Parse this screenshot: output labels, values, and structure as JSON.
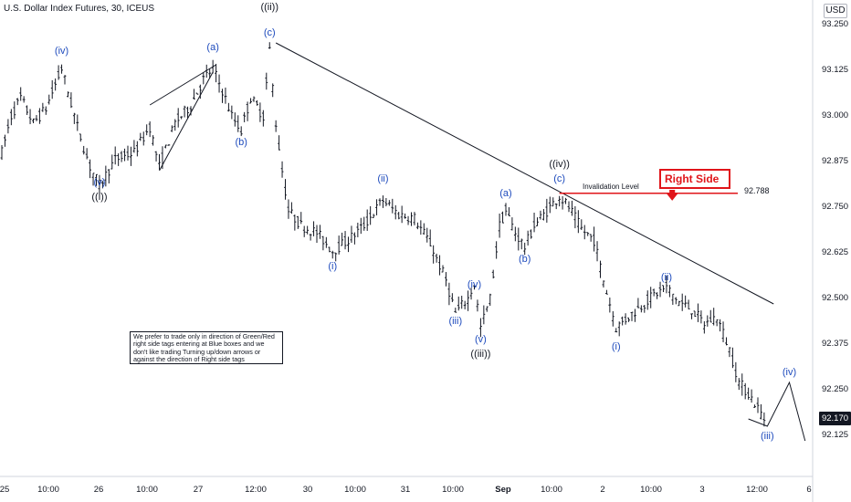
{
  "header": {
    "title": "U.S. Dollar Index Futures, 30, ICEUS",
    "currency": "USD"
  },
  "price_axis": {
    "labels": [
      "93.250",
      "93.125",
      "93.000",
      "92.875",
      "92.750",
      "92.625",
      "92.500",
      "92.375",
      "92.250",
      "92.125"
    ],
    "current_price": "92.170",
    "current_price_color": "#131722"
  },
  "time_axis": {
    "labels": [
      "25",
      "10:00",
      "26",
      "10:00",
      "27",
      "12:00",
      "30",
      "10:00",
      "31",
      "10:00",
      "Sep",
      "10:00",
      "2",
      "10:00",
      "3",
      "12:00",
      "6"
    ]
  },
  "annotations": {
    "invalidation_label": "Invalidation Level",
    "invalidation_value": "92.788",
    "right_side_tag": "Right Side",
    "right_side_arrow": "🡇",
    "note_text": "We prefer to trade only in direction of Green/Red right side tags entering at Blue boxes and we don't like trading Turning up/down arrows or against the direction of Right side tags"
  },
  "colors": {
    "candle": "#131722",
    "wave_blue": "#1e4bbd",
    "wave_black": "#131722",
    "invalidation_red": "#e0151a",
    "trendline": "#131722"
  },
  "chart_data": {
    "type": "ohlc",
    "title": "U.S. Dollar Index Futures, 30, ICEUS",
    "ylim": [
      92.06,
      93.3
    ],
    "y_ticks": [
      93.25,
      93.125,
      93.0,
      92.875,
      92.75,
      92.625,
      92.5,
      92.375,
      92.25,
      92.125
    ],
    "current_price": 92.17,
    "invalidation_level": 92.788,
    "wave_labels": [
      {
        "text": "(iv)",
        "color": "blue",
        "price": 93.17,
        "bar": 19
      },
      {
        "text": "(v)",
        "color": "blue",
        "price": 92.81,
        "bar": 31
      },
      {
        "text": "((i))",
        "color": "black",
        "price": 92.77,
        "bar": 31
      },
      {
        "text": "(a)",
        "color": "blue",
        "price": 93.18,
        "bar": 67
      },
      {
        "text": "(b)",
        "color": "blue",
        "price": 92.92,
        "bar": 76
      },
      {
        "text": "((ii))",
        "color": "black",
        "price": 93.29,
        "bar": 85
      },
      {
        "text": "(c)",
        "color": "blue",
        "price": 93.22,
        "bar": 85
      },
      {
        "text": "(i)",
        "color": "blue",
        "price": 92.58,
        "bar": 105
      },
      {
        "text": "(ii)",
        "color": "blue",
        "price": 92.82,
        "bar": 121
      },
      {
        "text": "(iii)",
        "color": "blue",
        "price": 92.43,
        "bar": 144
      },
      {
        "text": "(iv)",
        "color": "blue",
        "price": 92.53,
        "bar": 150
      },
      {
        "text": "(v)",
        "color": "blue",
        "price": 92.38,
        "bar": 152
      },
      {
        "text": "((iii))",
        "color": "black",
        "price": 92.34,
        "bar": 152
      },
      {
        "text": "(a)",
        "color": "blue",
        "price": 92.78,
        "bar": 160
      },
      {
        "text": "(b)",
        "color": "blue",
        "price": 92.6,
        "bar": 166
      },
      {
        "text": "((iv))",
        "color": "black",
        "price": 92.86,
        "bar": 177
      },
      {
        "text": "(c)",
        "color": "blue",
        "price": 92.82,
        "bar": 177
      },
      {
        "text": "(i)",
        "color": "blue",
        "price": 92.36,
        "bar": 195
      },
      {
        "text": "(ii)",
        "color": "blue",
        "price": 92.55,
        "bar": 211
      },
      {
        "text": "(iii)",
        "color": "blue",
        "price": 92.115,
        "bar": 243
      },
      {
        "text": "(iv)",
        "color": "blue",
        "price": 92.29,
        "bar": 250
      }
    ],
    "projection": [
      {
        "bar": 237,
        "price": 92.17
      },
      {
        "bar": 243,
        "price": 92.15
      },
      {
        "bar": 250,
        "price": 92.27
      },
      {
        "bar": 255,
        "price": 92.11
      }
    ],
    "trendline": [
      {
        "bar": 87,
        "price": 93.2
      },
      {
        "bar": 245,
        "price": 92.485
      }
    ],
    "wedge": [
      [
        {
          "bar": 47,
          "price": 93.03
        },
        {
          "bar": 68,
          "price": 93.14
        }
      ],
      [
        {
          "bar": 50,
          "price": 92.85
        },
        {
          "bar": 67,
          "price": 93.12
        }
      ]
    ]
  }
}
